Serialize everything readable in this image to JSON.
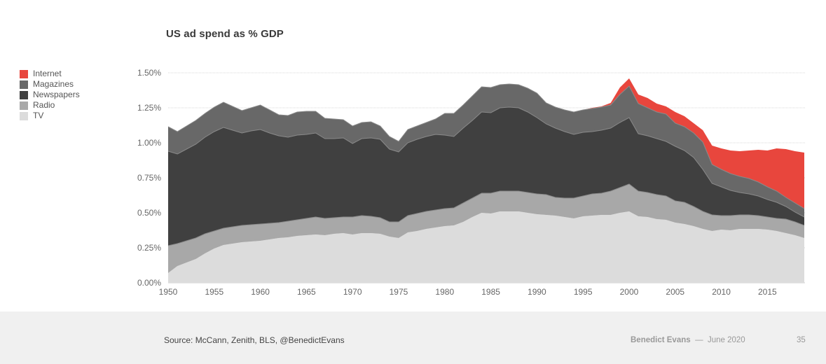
{
  "slide": {
    "footer": {
      "source": "Source: McCann, Zenith, BLS, @BenedictEvans",
      "author": "Benedict Evans",
      "separator": "—",
      "date": "June 2020",
      "page_number": "35"
    }
  },
  "chart_data": {
    "type": "area",
    "stacked": true,
    "title": "US ad spend as % GDP",
    "xlabel": "",
    "ylabel": "",
    "xlim": [
      1950,
      2019
    ],
    "ylim": [
      0,
      1.5
    ],
    "y_tick_labels": [
      "0.00%",
      "0.25%",
      "0.50%",
      "0.75%",
      "1.00%",
      "1.25%",
      "1.50%"
    ],
    "y_ticks": [
      0,
      0.25,
      0.5,
      0.75,
      1.0,
      1.25,
      1.5
    ],
    "x_tick_labels": [
      "1950",
      "1955",
      "1960",
      "1965",
      "1970",
      "1975",
      "1980",
      "1985",
      "1990",
      "1995",
      "2000",
      "2005",
      "2010",
      "2015"
    ],
    "x_ticks": [
      1950,
      1955,
      1960,
      1965,
      1970,
      1975,
      1980,
      1985,
      1990,
      1995,
      2000,
      2005,
      2010,
      2015
    ],
    "grid": "horizontal-dotted",
    "legend_position": "left",
    "units": "% of GDP",
    "x": [
      1950,
      1951,
      1952,
      1953,
      1954,
      1955,
      1956,
      1957,
      1958,
      1959,
      1960,
      1961,
      1962,
      1963,
      1964,
      1965,
      1966,
      1967,
      1968,
      1969,
      1970,
      1971,
      1972,
      1973,
      1974,
      1975,
      1976,
      1977,
      1978,
      1979,
      1980,
      1981,
      1982,
      1983,
      1984,
      1985,
      1986,
      1987,
      1988,
      1989,
      1990,
      1991,
      1992,
      1993,
      1994,
      1995,
      1996,
      1997,
      1998,
      1999,
      2000,
      2001,
      2002,
      2003,
      2004,
      2005,
      2006,
      2007,
      2008,
      2009,
      2010,
      2011,
      2012,
      2013,
      2014,
      2015,
      2016,
      2017,
      2018,
      2019
    ],
    "series": [
      {
        "name": "TV",
        "color": "#dcdcdc",
        "values": [
          0.07,
          0.12,
          0.145,
          0.17,
          0.21,
          0.245,
          0.27,
          0.28,
          0.29,
          0.295,
          0.3,
          0.31,
          0.32,
          0.325,
          0.335,
          0.34,
          0.345,
          0.34,
          0.35,
          0.355,
          0.345,
          0.355,
          0.355,
          0.35,
          0.33,
          0.32,
          0.36,
          0.37,
          0.385,
          0.395,
          0.405,
          0.41,
          0.435,
          0.47,
          0.5,
          0.495,
          0.51,
          0.51,
          0.51,
          0.5,
          0.49,
          0.485,
          0.48,
          0.47,
          0.46,
          0.475,
          0.48,
          0.485,
          0.485,
          0.5,
          0.51,
          0.475,
          0.47,
          0.455,
          0.45,
          0.43,
          0.42,
          0.405,
          0.385,
          0.37,
          0.38,
          0.375,
          0.385,
          0.385,
          0.385,
          0.38,
          0.37,
          0.355,
          0.34,
          0.32
        ]
      },
      {
        "name": "Radio",
        "color": "#a8a8a8",
        "values": [
          0.195,
          0.16,
          0.155,
          0.15,
          0.14,
          0.125,
          0.12,
          0.12,
          0.12,
          0.12,
          0.12,
          0.115,
          0.11,
          0.115,
          0.115,
          0.12,
          0.125,
          0.12,
          0.115,
          0.115,
          0.125,
          0.125,
          0.12,
          0.115,
          0.105,
          0.115,
          0.12,
          0.125,
          0.125,
          0.125,
          0.125,
          0.125,
          0.135,
          0.135,
          0.14,
          0.145,
          0.145,
          0.145,
          0.145,
          0.145,
          0.145,
          0.145,
          0.13,
          0.135,
          0.145,
          0.145,
          0.155,
          0.155,
          0.17,
          0.18,
          0.195,
          0.18,
          0.175,
          0.175,
          0.17,
          0.155,
          0.155,
          0.14,
          0.125,
          0.115,
          0.1,
          0.105,
          0.1,
          0.1,
          0.095,
          0.09,
          0.09,
          0.1,
          0.095,
          0.09
        ]
      },
      {
        "name": "Newspapers",
        "color": "#404040",
        "values": [
          0.675,
          0.64,
          0.655,
          0.67,
          0.69,
          0.71,
          0.72,
          0.69,
          0.66,
          0.67,
          0.675,
          0.645,
          0.62,
          0.6,
          0.605,
          0.6,
          0.6,
          0.57,
          0.565,
          0.565,
          0.525,
          0.55,
          0.56,
          0.56,
          0.52,
          0.5,
          0.52,
          0.53,
          0.535,
          0.54,
          0.525,
          0.51,
          0.535,
          0.555,
          0.58,
          0.575,
          0.595,
          0.6,
          0.595,
          0.575,
          0.545,
          0.505,
          0.495,
          0.475,
          0.455,
          0.455,
          0.445,
          0.45,
          0.45,
          0.465,
          0.475,
          0.41,
          0.405,
          0.4,
          0.39,
          0.39,
          0.37,
          0.35,
          0.3,
          0.225,
          0.205,
          0.18,
          0.16,
          0.15,
          0.14,
          0.125,
          0.115,
          0.09,
          0.07,
          0.06
        ]
      },
      {
        "name": "Magazines",
        "color": "#686868",
        "values": [
          0.175,
          0.16,
          0.165,
          0.17,
          0.17,
          0.175,
          0.18,
          0.17,
          0.16,
          0.165,
          0.175,
          0.165,
          0.15,
          0.155,
          0.165,
          0.165,
          0.155,
          0.145,
          0.14,
          0.13,
          0.125,
          0.115,
          0.115,
          0.095,
          0.09,
          0.075,
          0.095,
          0.095,
          0.1,
          0.11,
          0.155,
          0.165,
          0.165,
          0.175,
          0.18,
          0.18,
          0.165,
          0.165,
          0.165,
          0.17,
          0.175,
          0.15,
          0.15,
          0.155,
          0.16,
          0.16,
          0.165,
          0.165,
          0.165,
          0.2,
          0.225,
          0.215,
          0.2,
          0.19,
          0.195,
          0.165,
          0.17,
          0.175,
          0.195,
          0.135,
          0.125,
          0.12,
          0.115,
          0.11,
          0.1,
          0.09,
          0.08,
          0.065,
          0.065,
          0.06
        ]
      },
      {
        "name": "Internet",
        "color": "#e8463d",
        "values": [
          0,
          0,
          0,
          0,
          0,
          0,
          0,
          0,
          0,
          0,
          0,
          0,
          0,
          0,
          0,
          0,
          0,
          0,
          0,
          0,
          0,
          0,
          0,
          0,
          0,
          0,
          0,
          0,
          0,
          0,
          0,
          0,
          0,
          0,
          0,
          0,
          0,
          0,
          0,
          0,
          0,
          0,
          0,
          0,
          0,
          0,
          0.005,
          0.005,
          0.015,
          0.05,
          0.055,
          0.065,
          0.07,
          0.06,
          0.055,
          0.08,
          0.075,
          0.07,
          0.085,
          0.135,
          0.15,
          0.165,
          0.18,
          0.2,
          0.23,
          0.26,
          0.305,
          0.345,
          0.37,
          0.4
        ]
      }
    ],
    "legend": [
      "Internet",
      "Magazines",
      "Newspapers",
      "Radio",
      "TV"
    ]
  }
}
